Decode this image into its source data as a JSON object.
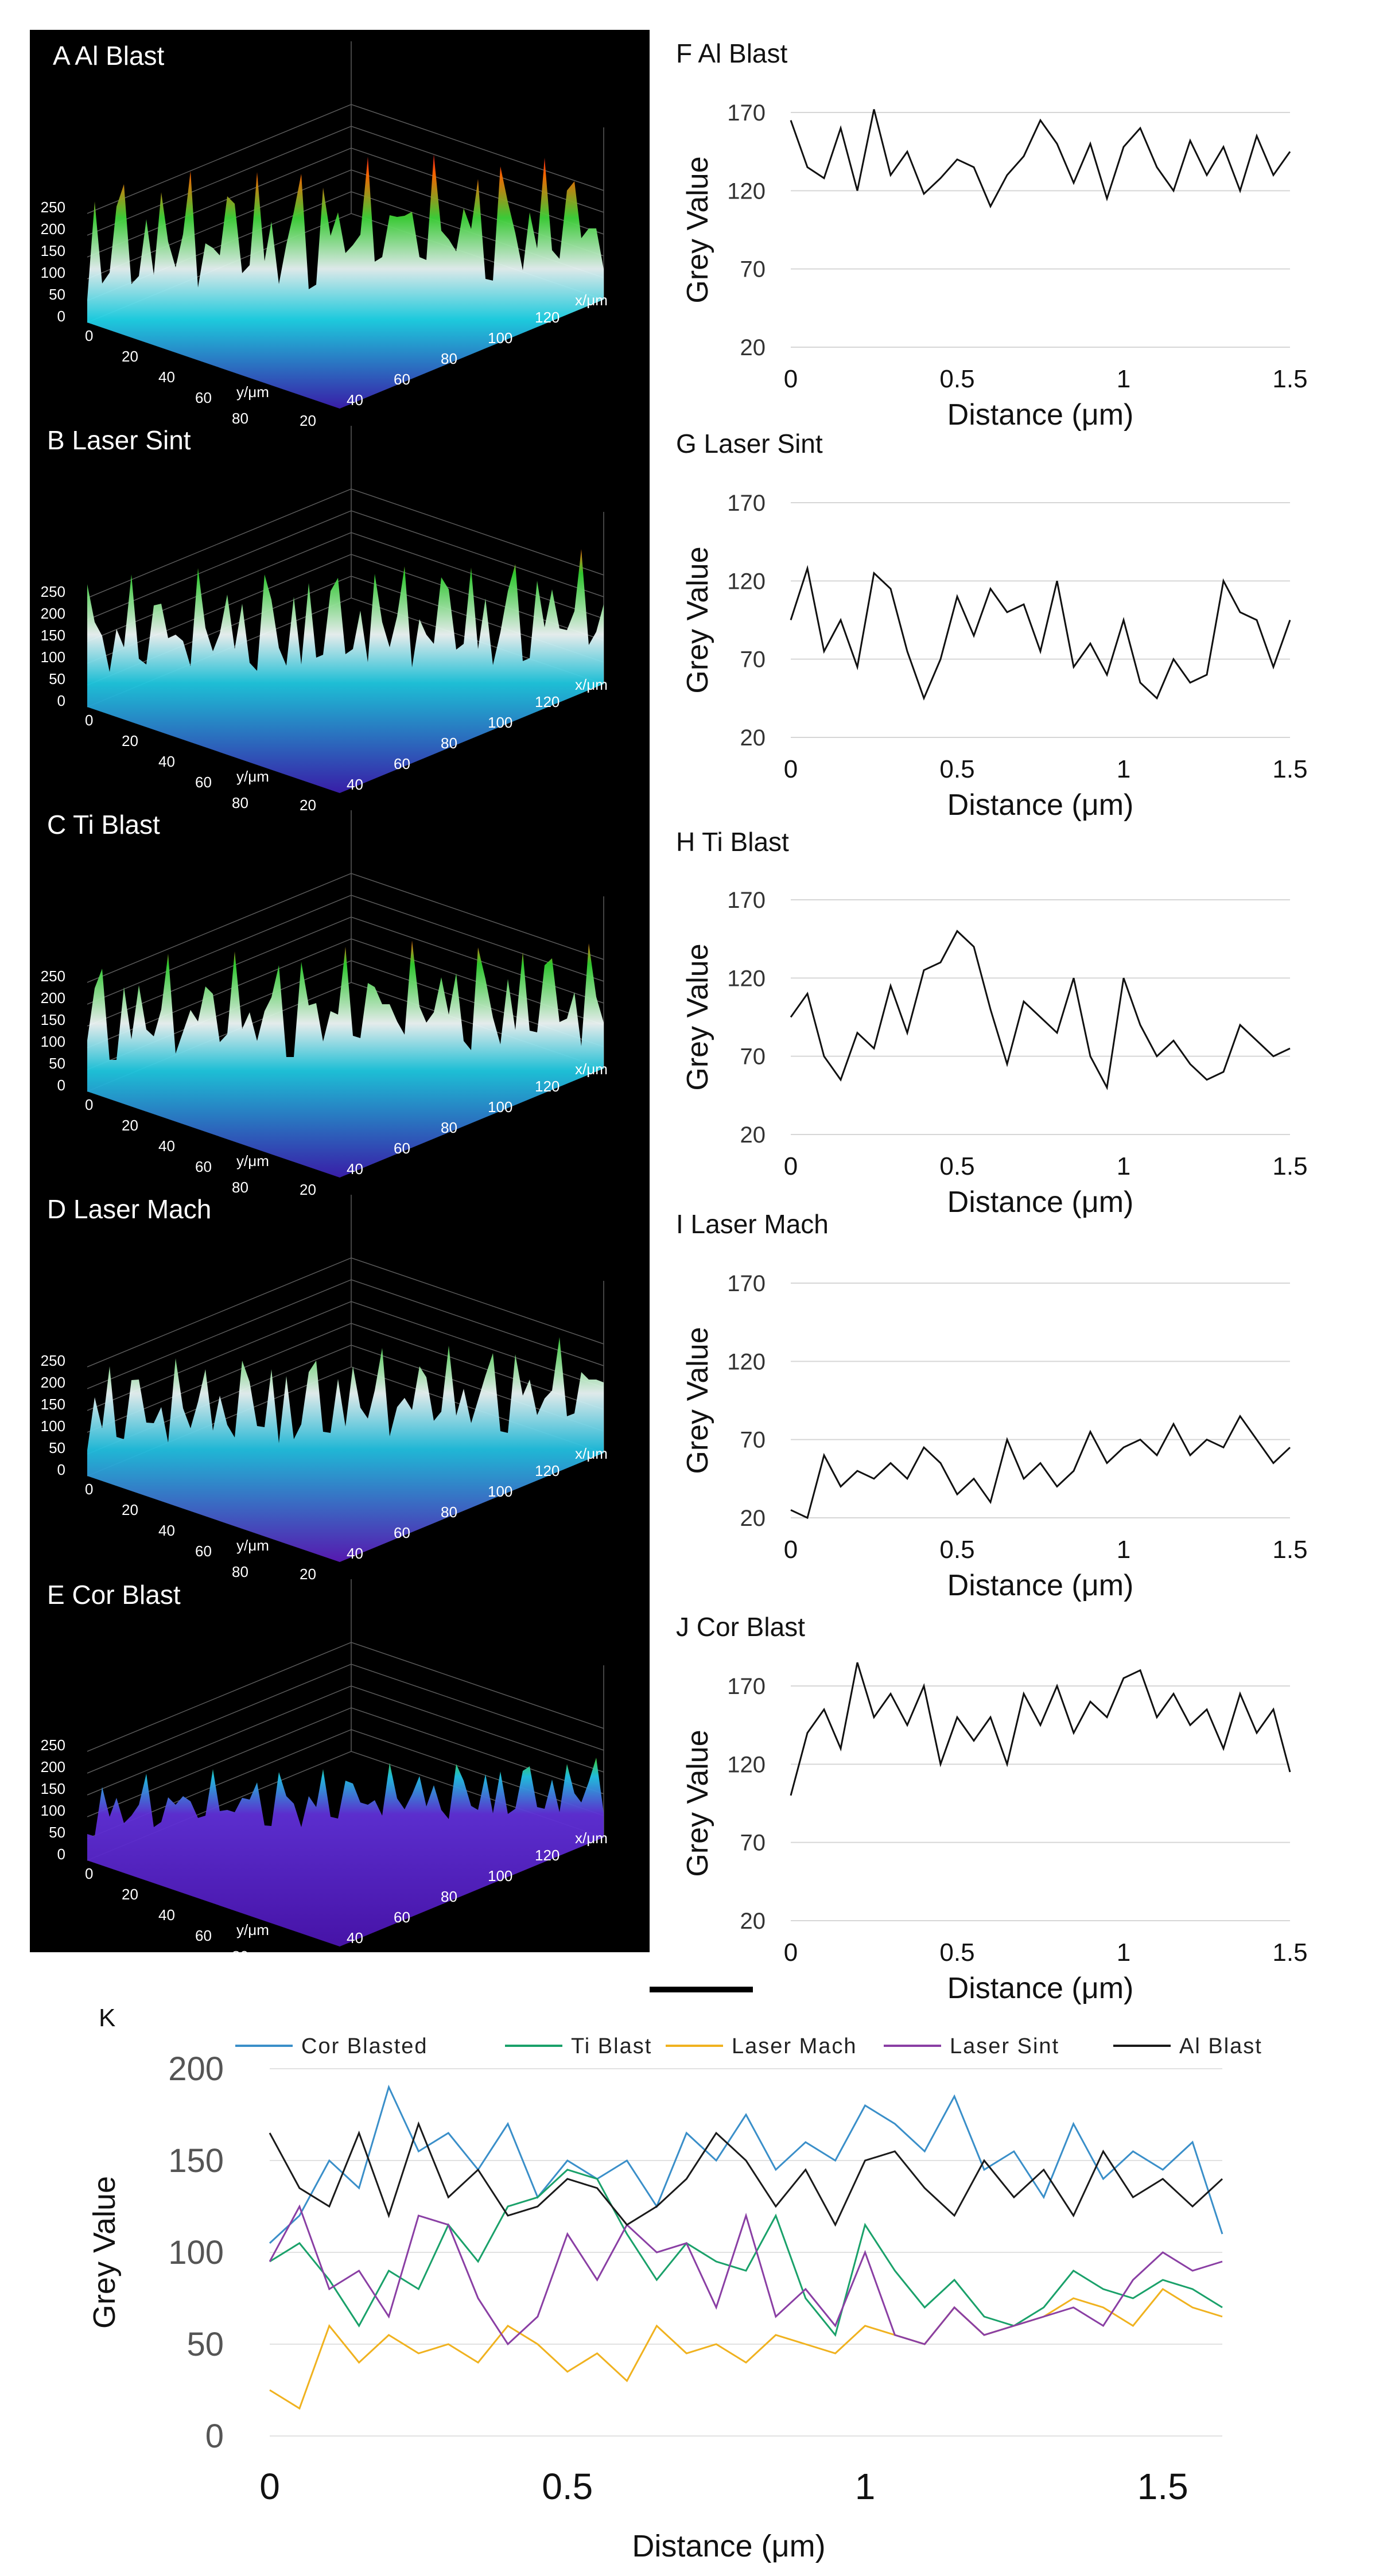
{
  "surface_panels": [
    {
      "label": "A Al Blast",
      "tone": "high"
    },
    {
      "label": "B Laser Sint",
      "tone": "mixed"
    },
    {
      "label": "C Ti Blast",
      "tone": "mixed"
    },
    {
      "label": "D Laser Mach",
      "tone": "mid"
    },
    {
      "label": "E Cor Blast",
      "tone": "low"
    }
  ],
  "surface_axis": {
    "z_ticks": [
      "0",
      "50",
      "100",
      "150",
      "200",
      "250"
    ],
    "x_ticks": [
      "20",
      "40",
      "60",
      "80",
      "100",
      "120"
    ],
    "y_ticks": [
      "0",
      "20",
      "40",
      "60",
      "80"
    ],
    "x_label": "x/μm",
    "y_label": "y/μm"
  },
  "colors": {
    "profile_line": "#111111",
    "cor_blasted": "#3a8fc9",
    "ti_blast": "#1aa16a",
    "laser_mach": "#f0b21f",
    "laser_sint": "#8a3fa4",
    "al_blast": "#1a1a1a"
  },
  "chart_data": [
    {
      "type": "line",
      "title": "F Al Blast",
      "xlabel": "Distance (μm)",
      "ylabel": "Grey Value",
      "xlim": [
        0,
        1.5
      ],
      "ylim": [
        20,
        170
      ],
      "x_ticks": [
        "0",
        "0.5",
        "1",
        "1.5"
      ],
      "y_ticks": [
        "20",
        "70",
        "120",
        "170"
      ],
      "series": [
        {
          "x": [
            0,
            0.05,
            0.1,
            0.15,
            0.2,
            0.25,
            0.3,
            0.35,
            0.4,
            0.45,
            0.5,
            0.55,
            0.6,
            0.65,
            0.7,
            0.75,
            0.8,
            0.85,
            0.9,
            0.95,
            1.0,
            1.05,
            1.1,
            1.15,
            1.2,
            1.25,
            1.3,
            1.35,
            1.4,
            1.45,
            1.5
          ],
          "values": [
            165,
            135,
            128,
            160,
            120,
            172,
            130,
            145,
            118,
            128,
            140,
            135,
            110,
            130,
            142,
            165,
            150,
            125,
            150,
            115,
            148,
            160,
            135,
            120,
            152,
            130,
            148,
            120,
            155,
            130,
            145
          ]
        }
      ]
    },
    {
      "type": "line",
      "title": "G Laser Sint",
      "xlabel": "Distance (μm)",
      "ylabel": "Grey Value",
      "xlim": [
        0,
        1.5
      ],
      "ylim": [
        20,
        170
      ],
      "x_ticks": [
        "0",
        "0.5",
        "1",
        "1.5"
      ],
      "y_ticks": [
        "20",
        "70",
        "120",
        "170"
      ],
      "series": [
        {
          "x": [
            0,
            0.05,
            0.1,
            0.15,
            0.2,
            0.25,
            0.3,
            0.35,
            0.4,
            0.45,
            0.5,
            0.55,
            0.6,
            0.65,
            0.7,
            0.75,
            0.8,
            0.85,
            0.9,
            0.95,
            1.0,
            1.05,
            1.1,
            1.15,
            1.2,
            1.25,
            1.3,
            1.35,
            1.4,
            1.45,
            1.5
          ],
          "values": [
            95,
            128,
            75,
            95,
            65,
            125,
            115,
            75,
            45,
            70,
            110,
            85,
            115,
            100,
            105,
            75,
            120,
            65,
            80,
            60,
            95,
            55,
            45,
            70,
            55,
            60,
            120,
            100,
            95,
            65,
            95
          ]
        }
      ]
    },
    {
      "type": "line",
      "title": "H Ti Blast",
      "xlabel": "Distance (μm)",
      "ylabel": "Grey Value",
      "xlim": [
        0,
        1.5
      ],
      "ylim": [
        20,
        170
      ],
      "x_ticks": [
        "0",
        "0.5",
        "1",
        "1.5"
      ],
      "y_ticks": [
        "20",
        "70",
        "120",
        "170"
      ],
      "series": [
        {
          "x": [
            0,
            0.05,
            0.1,
            0.15,
            0.2,
            0.25,
            0.3,
            0.35,
            0.4,
            0.45,
            0.5,
            0.55,
            0.6,
            0.65,
            0.7,
            0.75,
            0.8,
            0.85,
            0.9,
            0.95,
            1.0,
            1.05,
            1.1,
            1.15,
            1.2,
            1.25,
            1.3,
            1.35,
            1.4,
            1.45,
            1.5
          ],
          "values": [
            95,
            110,
            70,
            55,
            85,
            75,
            115,
            85,
            125,
            130,
            150,
            140,
            100,
            65,
            105,
            95,
            85,
            120,
            70,
            50,
            120,
            90,
            70,
            80,
            65,
            55,
            60,
            90,
            80,
            70,
            75
          ]
        }
      ]
    },
    {
      "type": "line",
      "title": "I Laser Mach",
      "xlabel": "Distance (μm)",
      "ylabel": "Grey Value",
      "xlim": [
        0,
        1.5
      ],
      "ylim": [
        20,
        170
      ],
      "x_ticks": [
        "0",
        "0.5",
        "1",
        "1.5"
      ],
      "y_ticks": [
        "20",
        "70",
        "120",
        "170"
      ],
      "series": [
        {
          "x": [
            0,
            0.05,
            0.1,
            0.15,
            0.2,
            0.25,
            0.3,
            0.35,
            0.4,
            0.45,
            0.5,
            0.55,
            0.6,
            0.65,
            0.7,
            0.75,
            0.8,
            0.85,
            0.9,
            0.95,
            1.0,
            1.05,
            1.1,
            1.15,
            1.2,
            1.25,
            1.3,
            1.35,
            1.4,
            1.45,
            1.5
          ],
          "values": [
            25,
            20,
            60,
            40,
            50,
            45,
            55,
            45,
            65,
            55,
            35,
            45,
            30,
            70,
            45,
            55,
            40,
            50,
            75,
            55,
            65,
            70,
            60,
            80,
            60,
            70,
            65,
            85,
            70,
            55,
            65
          ]
        }
      ]
    },
    {
      "type": "line",
      "title": "J Cor Blast",
      "xlabel": "Distance (μm)",
      "ylabel": "Grey Value",
      "xlim": [
        0,
        1.5
      ],
      "ylim": [
        20,
        170
      ],
      "x_ticks": [
        "0",
        "0.5",
        "1",
        "1.5"
      ],
      "y_ticks": [
        "20",
        "70",
        "120",
        "170"
      ],
      "series": [
        {
          "x": [
            0,
            0.05,
            0.1,
            0.15,
            0.2,
            0.25,
            0.3,
            0.35,
            0.4,
            0.45,
            0.5,
            0.55,
            0.6,
            0.65,
            0.7,
            0.75,
            0.8,
            0.85,
            0.9,
            0.95,
            1.0,
            1.05,
            1.1,
            1.15,
            1.2,
            1.25,
            1.3,
            1.35,
            1.4,
            1.45,
            1.5
          ],
          "values": [
            100,
            140,
            155,
            130,
            185,
            150,
            165,
            145,
            170,
            120,
            150,
            135,
            150,
            120,
            165,
            145,
            170,
            140,
            160,
            150,
            175,
            180,
            150,
            165,
            145,
            155,
            130,
            165,
            140,
            155,
            115
          ]
        }
      ]
    },
    {
      "type": "line",
      "title": "K",
      "xlabel": "Distance (μm)",
      "ylabel": "Grey Value",
      "xlim": [
        0,
        1.6
      ],
      "ylim": [
        0,
        200
      ],
      "x_ticks": [
        "0",
        "0.5",
        "1",
        "1.5"
      ],
      "y_ticks": [
        "0",
        "50",
        "100",
        "150",
        "200"
      ],
      "legend": "top",
      "x": [
        0,
        0.05,
        0.1,
        0.15,
        0.2,
        0.25,
        0.3,
        0.35,
        0.4,
        0.45,
        0.5,
        0.55,
        0.6,
        0.65,
        0.7,
        0.75,
        0.8,
        0.85,
        0.9,
        0.95,
        1.0,
        1.05,
        1.1,
        1.15,
        1.2,
        1.25,
        1.3,
        1.35,
        1.4,
        1.45,
        1.5,
        1.55,
        1.6
      ],
      "series": [
        {
          "name": "Cor Blasted",
          "values": [
            105,
            120,
            150,
            135,
            190,
            155,
            165,
            145,
            170,
            130,
            150,
            140,
            150,
            125,
            165,
            150,
            175,
            145,
            160,
            150,
            180,
            170,
            155,
            185,
            145,
            155,
            130,
            170,
            140,
            155,
            145,
            160,
            110
          ]
        },
        {
          "name": "Ti Blast",
          "values": [
            95,
            105,
            85,
            60,
            90,
            80,
            115,
            95,
            125,
            130,
            145,
            140,
            110,
            85,
            105,
            95,
            90,
            120,
            75,
            55,
            115,
            90,
            70,
            85,
            65,
            60,
            70,
            90,
            80,
            75,
            85,
            80,
            70
          ]
        },
        {
          "name": "Laser Mach",
          "values": [
            25,
            15,
            60,
            40,
            55,
            45,
            50,
            40,
            60,
            50,
            35,
            45,
            30,
            60,
            45,
            50,
            40,
            55,
            50,
            45,
            60,
            55,
            50,
            70,
            55,
            60,
            65,
            75,
            70,
            60,
            80,
            70,
            65
          ]
        },
        {
          "name": "Laser Sint",
          "values": [
            95,
            125,
            80,
            90,
            65,
            120,
            115,
            75,
            50,
            65,
            110,
            85,
            115,
            100,
            105,
            70,
            120,
            65,
            80,
            60,
            100,
            55,
            50,
            70,
            55,
            60,
            65,
            70,
            60,
            85,
            100,
            90,
            95
          ]
        },
        {
          "name": "Al Blast",
          "values": [
            165,
            135,
            125,
            165,
            120,
            170,
            130,
            145,
            120,
            125,
            140,
            135,
            115,
            125,
            140,
            165,
            150,
            125,
            145,
            115,
            150,
            155,
            135,
            120,
            150,
            130,
            145,
            120,
            155,
            130,
            140,
            125,
            140
          ]
        }
      ]
    }
  ]
}
